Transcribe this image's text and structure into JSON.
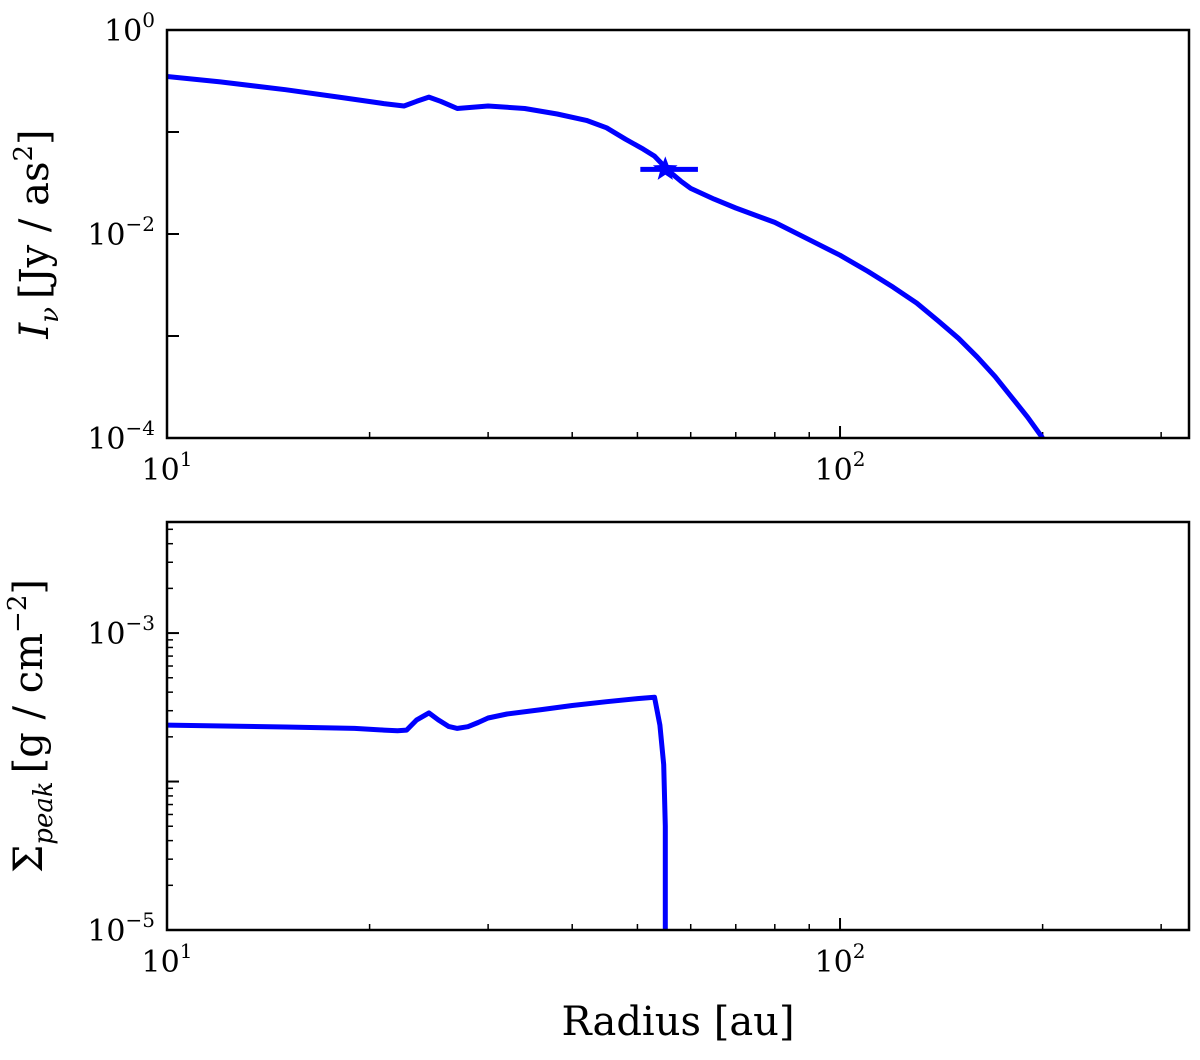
{
  "chart_data": [
    {
      "type": "line",
      "xscale": "log",
      "yscale": "log",
      "xlim": [
        10,
        330
      ],
      "ylim": [
        0.0001,
        1
      ],
      "xticks": [
        {
          "base": "10",
          "exp": "1"
        },
        {
          "base": "10",
          "exp": "2"
        }
      ],
      "yticks": [
        {
          "value": 1,
          "base": "10",
          "exp": "0"
        },
        {
          "value": 0.01,
          "base": "10",
          "exp": "−2"
        },
        {
          "value": 0.0001,
          "base": "10",
          "exp": "−4"
        }
      ],
      "ylabel": {
        "sym": "I",
        "sub": "ν",
        "unit": "[Jy / as",
        "unit_sup": "2",
        "unit_end": "]"
      },
      "xlabel": "",
      "grid": false,
      "line_color": "#0000ff",
      "series": [
        {
          "x": [
            10,
            12,
            15,
            18,
            21,
            22.5,
            23.5,
            24.5,
            25.5,
            27,
            30,
            34,
            38,
            42,
            45,
            48,
            51,
            53,
            54.5,
            56,
            58,
            60,
            65,
            70,
            80,
            90,
            100,
            110,
            120,
            130,
            140,
            150,
            160,
            170,
            180,
            190,
            200
          ],
          "y": [
            0.35,
            0.31,
            0.26,
            0.22,
            0.19,
            0.18,
            0.2,
            0.22,
            0.2,
            0.17,
            0.18,
            0.17,
            0.15,
            0.13,
            0.11,
            0.085,
            0.068,
            0.058,
            0.048,
            0.04,
            0.033,
            0.028,
            0.022,
            0.018,
            0.013,
            0.0088,
            0.0062,
            0.0043,
            0.003,
            0.0021,
            0.0014,
            0.00095,
            0.00062,
            0.0004,
            0.00025,
            0.00016,
            0.0001
          ]
        }
      ],
      "marker": {
        "x": 55,
        "y": 0.043,
        "xerr": [
          50.5,
          61.5
        ]
      }
    },
    {
      "type": "line",
      "xscale": "log",
      "yscale": "log",
      "xlim": [
        10,
        330
      ],
      "ylim": [
        1e-05,
        0.0056
      ],
      "xticks": [
        {
          "base": "10",
          "exp": "1"
        },
        {
          "base": "10",
          "exp": "2"
        }
      ],
      "yticks": [
        {
          "value": 0.001,
          "base": "10",
          "exp": "−3"
        },
        {
          "value": 1e-05,
          "base": "10",
          "exp": "−5"
        }
      ],
      "ylabel": {
        "sym": "Σ",
        "sub": "peak",
        "unit": "[g / cm",
        "unit_sup": "−2",
        "unit_end": "]"
      },
      "xlabel": "Radius [au]",
      "grid": false,
      "line_color": "#0000ff",
      "series": [
        {
          "x": [
            10,
            15,
            19,
            21,
            22,
            22.7,
            23.5,
            24.5,
            25.3,
            26.2,
            27,
            28,
            29,
            30,
            32,
            36,
            40,
            45,
            50,
            53,
            54,
            54.7,
            55,
            55,
            55
          ],
          "y": [
            0.00024,
            0.000233,
            0.000228,
            0.000222,
            0.00022,
            0.000222,
            0.00026,
            0.00029,
            0.00026,
            0.000235,
            0.000228,
            0.000234,
            0.00025,
            0.000268,
            0.000285,
            0.000305,
            0.000325,
            0.000345,
            0.000362,
            0.00037,
            0.00024,
            0.00013,
            5e-05,
            2e-05,
            1e-05
          ]
        }
      ]
    }
  ]
}
